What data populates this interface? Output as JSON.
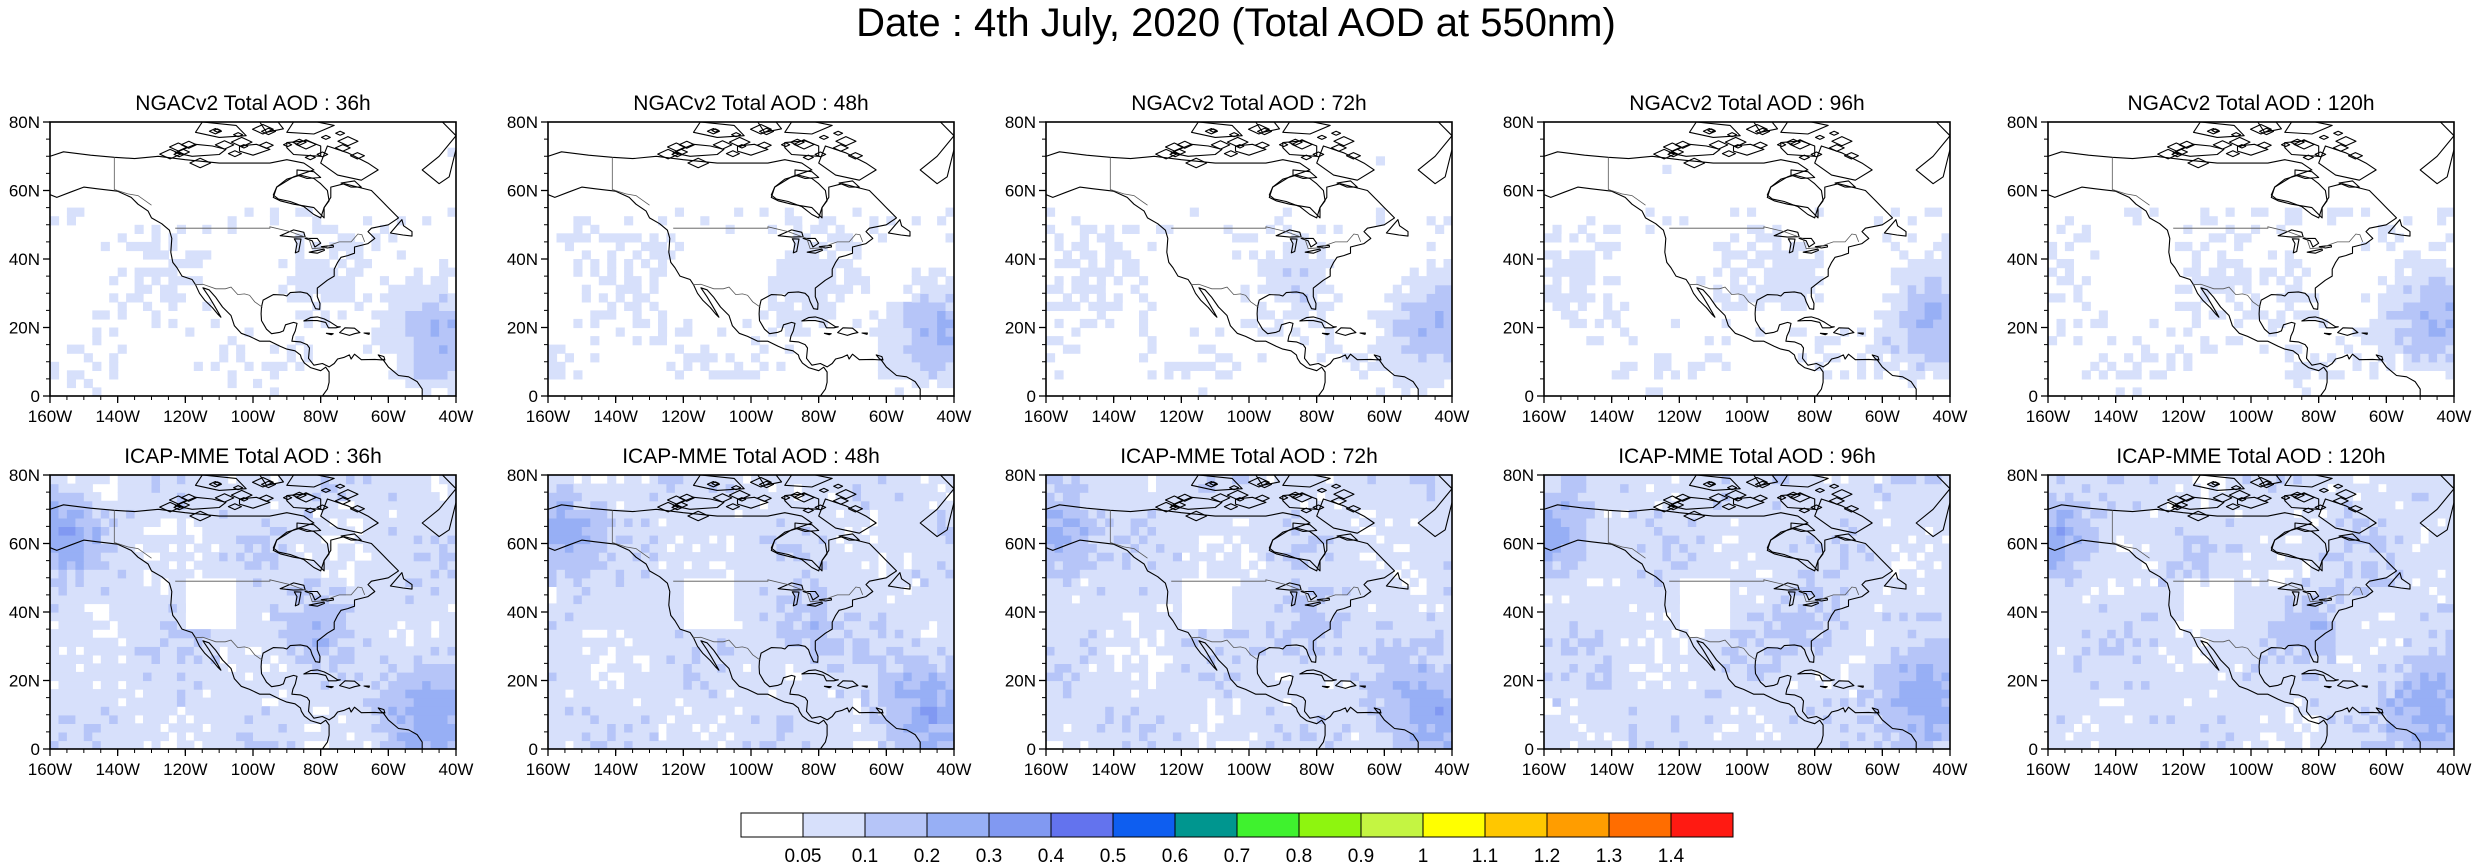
{
  "title": "Date : 4th July, 2020 (Total AOD at 550nm)",
  "panels": [
    {
      "title": "NGACv2 Total AOD : 36h",
      "model": "NGACv2",
      "lead": "36h"
    },
    {
      "title": "NGACv2 Total AOD : 48h",
      "model": "NGACv2",
      "lead": "48h"
    },
    {
      "title": "NGACv2 Total AOD : 72h",
      "model": "NGACv2",
      "lead": "72h"
    },
    {
      "title": "NGACv2 Total AOD : 96h",
      "model": "NGACv2",
      "lead": "96h"
    },
    {
      "title": "NGACv2 Total AOD : 120h",
      "model": "NGACv2",
      "lead": "120h"
    },
    {
      "title": "ICAP-MME Total AOD : 36h",
      "model": "ICAP-MME",
      "lead": "36h"
    },
    {
      "title": "ICAP-MME Total AOD : 48h",
      "model": "ICAP-MME",
      "lead": "48h"
    },
    {
      "title": "ICAP-MME Total AOD : 72h",
      "model": "ICAP-MME",
      "lead": "72h"
    },
    {
      "title": "ICAP-MME Total AOD : 96h",
      "model": "ICAP-MME",
      "lead": "96h"
    },
    {
      "title": "ICAP-MME Total AOD : 120h",
      "model": "ICAP-MME",
      "lead": "120h"
    }
  ],
  "lat_labels": [
    "80N",
    "60N",
    "40N",
    "20N",
    "0"
  ],
  "lon_labels": [
    "160W",
    "140W",
    "120W",
    "100W",
    "80W",
    "60W",
    "40W"
  ],
  "colorbar": {
    "colors": [
      "#ffffff",
      "#d7e0fb",
      "#b6c5f8",
      "#97aff5",
      "#8199f2",
      "#6373ee",
      "#0e5ef0",
      "#00968f",
      "#3ff22e",
      "#8ef50f",
      "#c4f542",
      "#ffff00",
      "#ffc700",
      "#ff9d00",
      "#ff6d00",
      "#ff1a12"
    ],
    "labels": [
      "0.05",
      "0.1",
      "0.2",
      "0.3",
      "0.4",
      "0.5",
      "0.6",
      "0.7",
      "0.8",
      "0.9",
      "1",
      "1.1",
      "1.2",
      "1.3",
      "1.4"
    ]
  }
}
